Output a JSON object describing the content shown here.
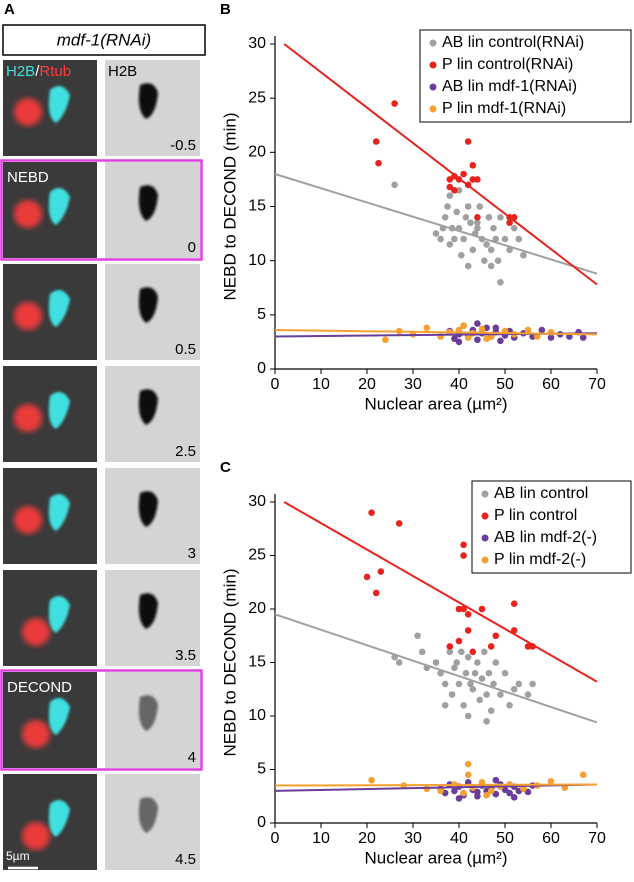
{
  "panel_a": {
    "label": "A",
    "header": "mdf-1(RNAi)",
    "channel_h2b": "H2B",
    "channel_sep": "/",
    "channel_tub": "Rtub",
    "gray_label": "H2B",
    "event_nebd": "NEBD",
    "event_decond": "DECOND",
    "times": [
      -0.5,
      0,
      0.5,
      2.5,
      3,
      3.5,
      4,
      4.5
    ],
    "scale_bar": "5µm"
  },
  "chart_data": [
    {
      "type": "scatter",
      "panel": "B",
      "ylabel": "NEBD to DECOND (min)",
      "xlabel": "Nuclear area (µm²)",
      "xlim": [
        0,
        70
      ],
      "ylim": [
        0,
        30
      ],
      "xticks": [
        0,
        10,
        20,
        30,
        40,
        50,
        60,
        70
      ],
      "yticks": [
        0,
        5,
        10,
        15,
        20,
        25,
        30
      ],
      "legend": "upper right",
      "series": [
        {
          "name": "AB lin control(RNAi)",
          "color": "#a0a0a0",
          "x": [
            26,
            35,
            36,
            36.5,
            37,
            37.5,
            38,
            38.5,
            39,
            39.5,
            40,
            40.5,
            41,
            41.5,
            42,
            42.5,
            43,
            43.5,
            44,
            44.5,
            45,
            45.5,
            46,
            46.5,
            47,
            47.5,
            48,
            48.5,
            49,
            50,
            51,
            52,
            53,
            54,
            38,
            40,
            44,
            47,
            49,
            42
          ],
          "values": [
            17,
            12.5,
            12,
            13,
            14,
            15,
            11.5,
            13,
            12,
            14.5,
            13,
            10.5,
            12,
            14,
            15,
            13.5,
            11,
            12.5,
            13,
            15,
            12,
            10,
            11.5,
            14,
            9.5,
            13,
            12,
            10,
            14,
            12,
            11,
            13,
            12,
            10.5,
            16,
            16.5,
            13.5,
            11,
            8,
            9.5
          ],
          "trend": {
            "x": [
              0,
              70
            ],
            "values": [
              18,
              8.8
            ]
          }
        },
        {
          "name": "P lin control(RNAi)",
          "color": "#e8221c",
          "x": [
            22,
            26,
            22.5,
            38,
            39,
            39,
            40,
            41,
            42,
            43,
            43,
            44,
            42,
            44,
            51,
            51,
            52,
            38
          ],
          "values": [
            21,
            24.5,
            19,
            17.5,
            16.5,
            17.8,
            17.5,
            18,
            17,
            17.5,
            18.8,
            17.5,
            21,
            14,
            13.5,
            14,
            14,
            16.8
          ],
          "trend": {
            "x": [
              2,
              70
            ],
            "values": [
              30,
              7.8
            ]
          }
        },
        {
          "name": "AB lin mdf-1(RNAi)",
          "color": "#6a3d9a",
          "x": [
            38,
            39,
            40,
            41,
            42,
            43,
            44,
            45,
            46,
            47,
            48,
            49,
            50,
            51,
            52,
            54,
            56,
            58,
            60,
            62,
            64,
            66,
            67,
            40,
            44,
            48
          ],
          "values": [
            3.5,
            2.8,
            3.2,
            4,
            3,
            3.6,
            2.7,
            3.3,
            3.8,
            3,
            3.4,
            2.6,
            3.1,
            3.5,
            2.9,
            3.3,
            3,
            3.6,
            2.9,
            3.2,
            3,
            3.4,
            2.9,
            2.5,
            4.2,
            3.8
          ],
          "trend": {
            "x": [
              0,
              70
            ],
            "values": [
              3,
              3.3
            ]
          }
        },
        {
          "name": "P lin mdf-1(RNAi)",
          "color": "#f5a030",
          "x": [
            24,
            27,
            30,
            33,
            36,
            38,
            40,
            42,
            43,
            45,
            47,
            50,
            52,
            55,
            57,
            60,
            41,
            46
          ],
          "values": [
            2.7,
            3.5,
            3.2,
            3.8,
            3,
            3.4,
            3.6,
            2.9,
            3.3,
            3.7,
            3,
            3.5,
            3.2,
            3.6,
            3,
            3.4,
            4,
            2.8
          ],
          "trend": {
            "x": [
              0,
              70
            ],
            "values": [
              3.6,
              3.2
            ]
          }
        }
      ]
    },
    {
      "type": "scatter",
      "panel": "C",
      "ylabel": "NEBD to DECOND (min)",
      "xlabel": "Nuclear area (µm²)",
      "xlim": [
        0,
        70
      ],
      "ylim": [
        0,
        30
      ],
      "xticks": [
        0,
        10,
        20,
        30,
        40,
        50,
        60,
        70
      ],
      "yticks": [
        0,
        5,
        10,
        15,
        20,
        25,
        30
      ],
      "legend": "upper right",
      "series": [
        {
          "name": "AB lin control",
          "color": "#a0a0a0",
          "x": [
            26,
            27,
            31,
            32,
            33,
            35,
            36,
            37,
            38,
            38.5,
            39,
            39.5,
            40,
            40.5,
            41,
            41.5,
            42,
            42.5,
            43,
            43.5,
            44,
            44.5,
            45,
            45.5,
            46,
            46.5,
            47,
            47.5,
            48,
            49,
            50,
            51,
            52,
            53,
            55,
            56,
            37,
            42,
            46
          ],
          "values": [
            15.5,
            15,
            17.5,
            16,
            14.5,
            15,
            14,
            13,
            16,
            12,
            14.5,
            15,
            13,
            16,
            11,
            14,
            15.5,
            13,
            12.5,
            14,
            15,
            11.5,
            13.5,
            16,
            12,
            14,
            10.5,
            13,
            15,
            12,
            14,
            11,
            12.5,
            13,
            12,
            13,
            11,
            10,
            9.5
          ],
          "trend": {
            "x": [
              0,
              70
            ],
            "values": [
              19.5,
              9.4
            ]
          }
        },
        {
          "name": "P lin control",
          "color": "#e8221c",
          "x": [
            20,
            21,
            22,
            23,
            27,
            41,
            41,
            40,
            41,
            42,
            38,
            40,
            42,
            43,
            45,
            47,
            48,
            52,
            52,
            55,
            56
          ],
          "values": [
            23,
            29,
            21.5,
            23.5,
            28,
            25,
            26,
            20,
            20,
            19.5,
            16.5,
            17,
            18,
            16,
            20,
            16.5,
            17.5,
            18,
            20.5,
            16.5,
            16.5
          ],
          "trend": {
            "x": [
              2,
              70
            ],
            "values": [
              30,
              13.2
            ]
          }
        },
        {
          "name": "AB lin mdf-2(-)",
          "color": "#6a3d9a",
          "x": [
            36,
            37,
            38,
            39,
            40,
            41,
            42,
            43,
            44,
            45,
            46,
            47,
            48,
            49,
            50,
            51,
            52,
            53,
            54,
            55,
            56,
            40,
            44,
            48,
            52
          ],
          "values": [
            3.2,
            2.8,
            3.6,
            3,
            3.4,
            2.6,
            3.8,
            3.1,
            2.9,
            3.5,
            3,
            3.3,
            2.7,
            3.6,
            3.1,
            2.8,
            3.4,
            3,
            3.2,
            2.9,
            3.5,
            2.3,
            2.5,
            4,
            2.4
          ],
          "trend": {
            "x": [
              0,
              70
            ],
            "values": [
              3,
              3.6
            ]
          }
        },
        {
          "name": "P lin mdf-2(-)",
          "color": "#f5a030",
          "x": [
            21,
            28,
            33,
            36,
            39,
            41,
            42,
            43,
            45,
            47,
            49,
            51,
            54,
            57,
            60,
            63,
            67,
            42,
            46
          ],
          "values": [
            4,
            3.5,
            3.2,
            3,
            3.6,
            2.8,
            5.5,
            3.3,
            3.8,
            3,
            3.4,
            3.6,
            3.2,
            3.5,
            3.9,
            3.3,
            4.5,
            4.5,
            2.6
          ],
          "trend": {
            "x": [
              0,
              70
            ],
            "values": [
              3.5,
              3.6
            ]
          }
        }
      ]
    }
  ]
}
